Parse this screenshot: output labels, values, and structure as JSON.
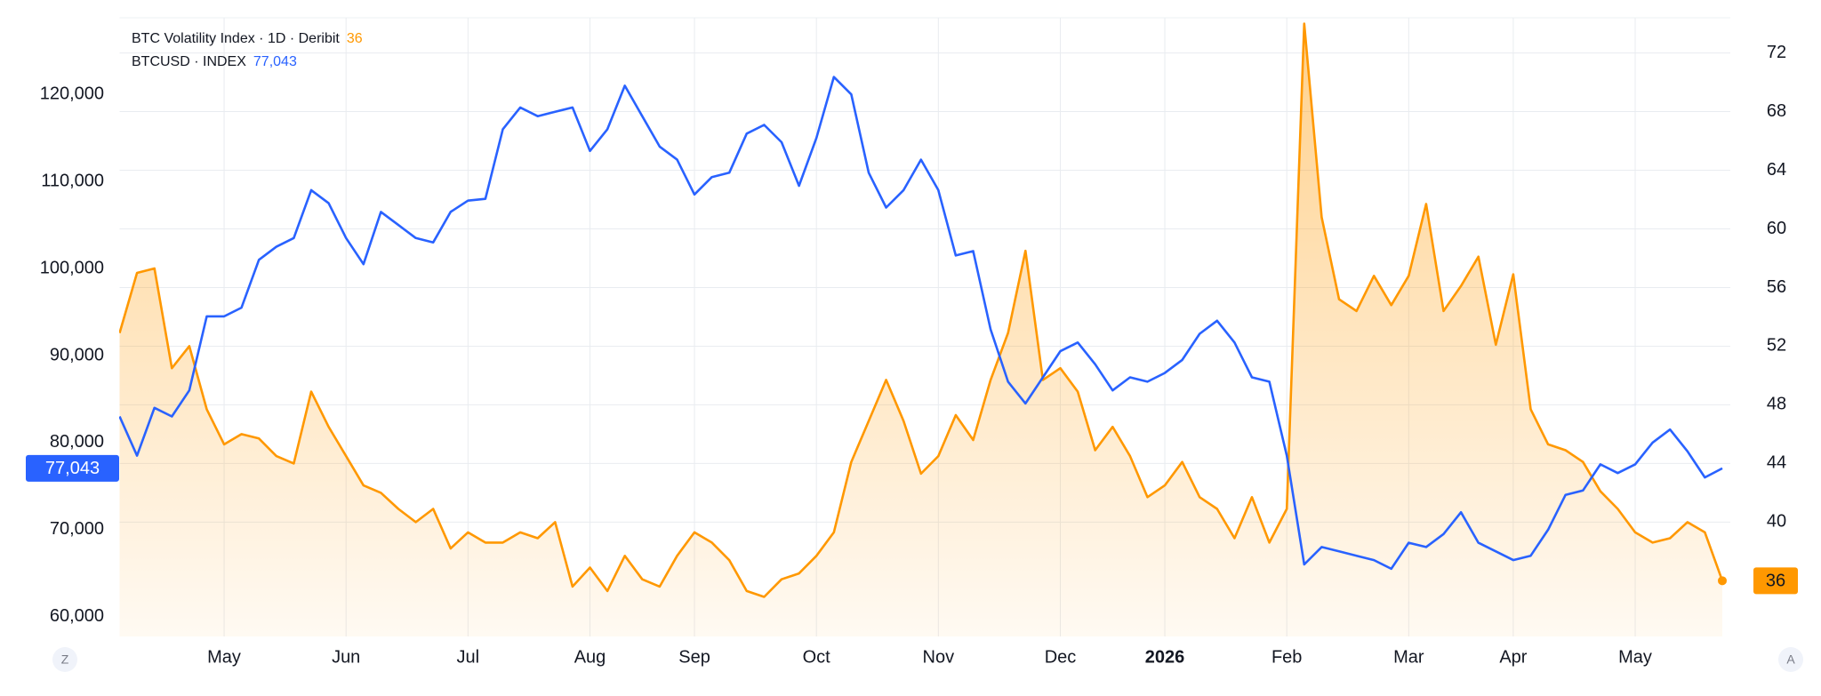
{
  "chart_data": {
    "type": "line",
    "categories": [
      null,
      null,
      null,
      null,
      null,
      null,
      "May",
      null,
      null,
      null,
      null,
      null,
      null,
      "Jun",
      null,
      null,
      null,
      null,
      null,
      null,
      "Jul",
      null,
      null,
      null,
      null,
      null,
      null,
      "Aug",
      null,
      null,
      null,
      null,
      null,
      "Sep",
      null,
      null,
      null,
      null,
      null,
      null,
      "Oct",
      null,
      null,
      null,
      null,
      null,
      null,
      "Nov",
      null,
      null,
      null,
      null,
      null,
      null,
      "Dec",
      null,
      null,
      null,
      null,
      null,
      "2026",
      null,
      null,
      null,
      null,
      null,
      null,
      "Feb",
      null,
      null,
      null,
      null,
      null,
      null,
      "Mar",
      null,
      null,
      null,
      null,
      null,
      "Apr",
      null,
      null,
      null,
      null,
      null,
      null,
      "May",
      null,
      null,
      null,
      null,
      null
    ],
    "series": [
      {
        "name": "BTCUSD · INDEX",
        "color": "#2962ff",
        "style": "line",
        "axis": "y",
        "last_value_label": "77,043",
        "values": [
          83000,
          78500,
          84000,
          83000,
          86000,
          94500,
          94500,
          95500,
          101000,
          102500,
          103500,
          109000,
          107500,
          103500,
          100500,
          106500,
          105000,
          103500,
          103000,
          106500,
          107800,
          108000,
          116000,
          118500,
          117500,
          118000,
          118500,
          113500,
          116000,
          121000,
          117500,
          114000,
          112500,
          108500,
          110500,
          111000,
          115500,
          116500,
          114500,
          109500,
          115000,
          122000,
          120000,
          111000,
          107000,
          109000,
          112500,
          109000,
          101500,
          102000,
          93000,
          87000,
          84500,
          87500,
          90500,
          91500,
          89000,
          86000,
          87500,
          87000,
          88000,
          89500,
          92500,
          94000,
          91500,
          87500,
          87000,
          78500,
          66000,
          68000,
          67500,
          67000,
          66500,
          65500,
          68500,
          68000,
          69500,
          72000,
          68500,
          67500,
          66500,
          67000,
          70000,
          74000,
          74500,
          77500,
          76500,
          77500,
          80000,
          81500,
          79000,
          76000,
          77043
        ]
      },
      {
        "name": "BTC Volatility Index · 1D · Deribit",
        "color": "#ff9800",
        "style": "area",
        "axis": "y2",
        "values": [
          52.9,
          57,
          57.3,
          50.5,
          52,
          47.7,
          45.3,
          46,
          45.7,
          44.5,
          44,
          48.9,
          46.5,
          44.5,
          42.5,
          42,
          40.9,
          40,
          40.9,
          38.2,
          39.3,
          38.6,
          38.6,
          39.3,
          38.9,
          40,
          35.6,
          36.9,
          35.3,
          37.7,
          36.1,
          35.6,
          37.7,
          39.3,
          38.6,
          37.4,
          35.3,
          34.9,
          36.1,
          36.5,
          37.7,
          39.3,
          44.1,
          46.9,
          49.7,
          46.9,
          43.3,
          44.5,
          47.3,
          45.6,
          49.7,
          52.9,
          58.5,
          49.7,
          50.5,
          48.9,
          44.9,
          46.5,
          44.5,
          41.7,
          42.5,
          44.1,
          41.7,
          40.9,
          38.9,
          41.7,
          38.6,
          40.9,
          74,
          60.8,
          55.2,
          54.4,
          56.8,
          54.8,
          56.8,
          61.7,
          54.4,
          56.1,
          58.1,
          52.1,
          56.9,
          47.7,
          45.3,
          44.9,
          44.1,
          42.1,
          40.9,
          39.3,
          38.6,
          38.9,
          40,
          39.3,
          36
        ]
      }
    ],
    "ylim": [
      57733,
      128800
    ],
    "yticks": [
      {
        "value": 60000,
        "label": "60,000"
      },
      {
        "value": 70000,
        "label": "70,000"
      },
      {
        "value": 80000,
        "label": "80,000"
      },
      {
        "value": 90000,
        "label": "90,000"
      },
      {
        "value": 100000,
        "label": "100,000"
      },
      {
        "value": 110000,
        "label": "110,000"
      },
      {
        "value": 120000,
        "label": "120,000"
      }
    ],
    "y2lim": [
      32.2,
      74.4
    ],
    "y2ticks": [
      40,
      44,
      48,
      52,
      56,
      60,
      64,
      68,
      72
    ],
    "grid": "y2",
    "buttons": [
      "Z",
      "A"
    ]
  }
}
